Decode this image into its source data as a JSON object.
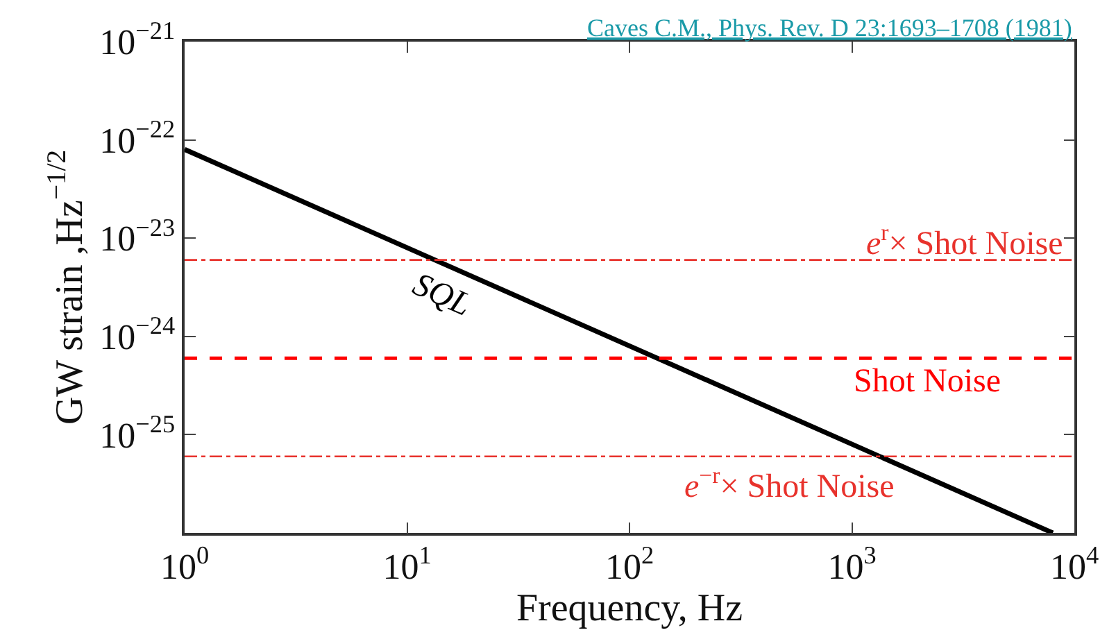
{
  "chart_data": {
    "type": "line",
    "xlabel": "Frequency, Hz",
    "ylabel": "GW strain ,Hz$^{−1/2}$",
    "log": "xy",
    "legend": false,
    "marker": "none",
    "xlim": [
      1,
      10000
    ],
    "xticks": [
      {
        "value": 1,
        "label": "10$^{0}$"
      },
      {
        "value": 10,
        "label": "10$^{1}$"
      },
      {
        "value": 100,
        "label": "10$^{2}$"
      },
      {
        "value": 1000,
        "label": "10$^{3}$"
      },
      {
        "value": 10000,
        "label": "10$^{4}$"
      }
    ],
    "ylim": [
      1e-26,
      1e-21
    ],
    "yticks": [
      {
        "value": 1e-26,
        "label": null
      },
      {
        "value": 1e-25,
        "label": "10$^{−25}$"
      },
      {
        "value": 1e-24,
        "label": "10$^{−24}$"
      },
      {
        "value": 1e-23,
        "label": "10$^{−23}$"
      },
      {
        "value": 1e-22,
        "label": "10$^{−22}$"
      },
      {
        "value": 1e-21,
        "label": "10$^{−21}$"
      }
    ],
    "series": [
      {
        "name": "SQL",
        "color": "#000000",
        "x": [
          1,
          8000
        ],
        "values": [
          8e-23,
          1e-26
        ],
        "line_style": "solid"
      }
    ],
    "ref_lines": [
      {
        "axis": "y",
        "value": 6e-24,
        "label": "e$^{r}$× Shot Noise",
        "color": "#e8322c",
        "line_style": "dashdot"
      },
      {
        "axis": "y",
        "value": 6e-25,
        "label": "Shot Noise",
        "color": "#ff0000",
        "line_style": "dashed"
      },
      {
        "axis": "y",
        "value": 6e-26,
        "label": "e$^{−r}$× Shot Noise",
        "color": "#e8322c",
        "line_style": "dashdot"
      }
    ],
    "annotations": [
      "Caves C.M., Phys. Rev. D 23:1693–1708 (1981)"
    ]
  }
}
